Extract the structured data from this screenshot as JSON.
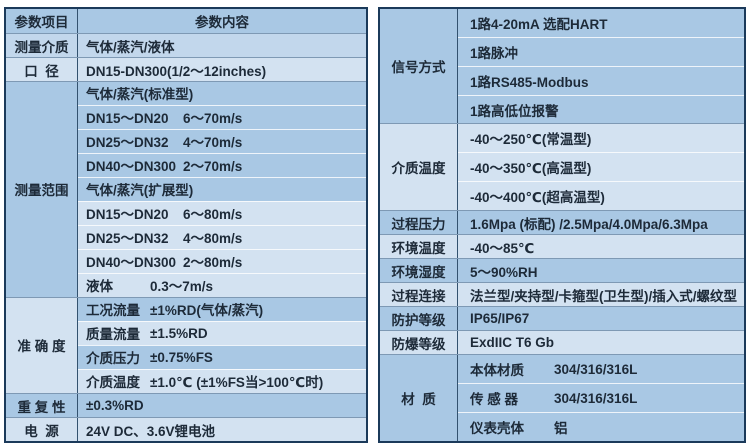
{
  "colors": {
    "band_medium": "#a9c8e4",
    "band_light": "#d3e2f1",
    "band_mid": "#c2d7ec",
    "border_dark": "#1b3a5a",
    "divider_vertical": "#33526f",
    "section_separator": "#7e99b4",
    "row_separator": "rgba(255,255,255,0.8)",
    "text": "#1d2a38",
    "page_background": "#ffffff"
  },
  "left_table": {
    "header": {
      "col1": "参数项目",
      "col2": "参数内容",
      "shade": "m"
    },
    "sections": [
      {
        "label": "测量介质",
        "shade": "ml",
        "rows": [
          {
            "value": "气体/蒸汽/液体",
            "shade": "ml"
          }
        ]
      },
      {
        "label": "口  径",
        "shade": "l",
        "rows": [
          {
            "value": "DN15-DN300(1/2～12inches)",
            "shade": "l"
          }
        ]
      },
      {
        "label": "测量范围",
        "shade": "m",
        "rows": [
          {
            "value": "气体/蒸汽(标准型)",
            "shade": "m"
          },
          {
            "name": "DN15～DN20",
            "value": "6～70m/s",
            "shade": "m"
          },
          {
            "name": "DN25～DN32",
            "value": "4～70m/s",
            "shade": "m"
          },
          {
            "name": "DN40～DN300",
            "value": "2～70m/s",
            "shade": "m"
          },
          {
            "value": "气体/蒸汽(扩展型)",
            "shade": "m"
          },
          {
            "name": "DN15～DN20",
            "value": "6～80m/s",
            "shade": "l"
          },
          {
            "name": "DN25～DN32",
            "value": "4～80m/s",
            "shade": "l"
          },
          {
            "name": "DN40～DN300",
            "value": "2～80m/s",
            "shade": "l"
          },
          {
            "name": "液体",
            "value": "0.3～7m/s",
            "shade": "l"
          }
        ]
      },
      {
        "label": "准 确 度",
        "shade": "l",
        "rows": [
          {
            "name": "工况流量",
            "value": "±1%RD(气体/蒸汽)",
            "shade": "m"
          },
          {
            "name": "质量流量",
            "value": "±1.5%RD",
            "shade": "l"
          },
          {
            "name": "介质压力",
            "value": "±0.75%FS",
            "shade": "m"
          },
          {
            "name": "介质温度",
            "value": "±1.0℃ (±1%FS当>100℃时)",
            "shade": "l"
          }
        ]
      },
      {
        "label": "重 复 性",
        "shade": "m",
        "rows": [
          {
            "value": "±0.3%RD",
            "shade": "m"
          }
        ]
      },
      {
        "label": "电  源",
        "shade": "l",
        "rows": [
          {
            "value": "24V DC、3.6V锂电池",
            "shade": "l"
          }
        ]
      }
    ]
  },
  "right_table": {
    "sections": [
      {
        "label": "信号方式",
        "shade": "m",
        "rows": [
          {
            "value": "1路4-20mA 选配HART",
            "shade": "m"
          },
          {
            "value": "1路脉冲",
            "shade": "m"
          },
          {
            "value": "1路RS485-Modbus",
            "shade": "m"
          },
          {
            "value": "1路高低位报警",
            "shade": "m"
          }
        ]
      },
      {
        "label": "介质温度",
        "shade": "l",
        "rows": [
          {
            "value": "-40～250℃(常温型)",
            "shade": "l"
          },
          {
            "value": "-40～350℃(高温型)",
            "shade": "l"
          },
          {
            "value": "-40～400℃(超高温型)",
            "shade": "l"
          }
        ]
      },
      {
        "label": "过程压力",
        "shade": "m",
        "rows": [
          {
            "value": "1.6Mpa (标配) /2.5Mpa/4.0Mpa/6.3Mpa",
            "shade": "m"
          }
        ]
      },
      {
        "label": "环境温度",
        "shade": "l",
        "rows": [
          {
            "value": "-40～85℃",
            "shade": "l"
          }
        ]
      },
      {
        "label": "环境湿度",
        "shade": "m",
        "rows": [
          {
            "value": "5～90%RH",
            "shade": "m"
          }
        ]
      },
      {
        "label": "过程连接",
        "shade": "l",
        "rows": [
          {
            "value": "法兰型/夹持型/卡箍型(卫生型)/插入式/螺纹型",
            "shade": "l"
          }
        ]
      },
      {
        "label": "防护等级",
        "shade": "m",
        "rows": [
          {
            "value": "IP65/IP67",
            "shade": "m"
          }
        ]
      },
      {
        "label": "防爆等级",
        "shade": "l",
        "rows": [
          {
            "value": "ExdIIC T6 Gb",
            "shade": "l"
          }
        ]
      },
      {
        "label": "材  质",
        "shade": "m",
        "rows": [
          {
            "name": "本体材质",
            "value": "304/316/316L",
            "shade": "m"
          },
          {
            "name": "传 感 器",
            "value": "304/316/316L",
            "shade": "m"
          },
          {
            "name": "仪表壳体",
            "value": "铝",
            "shade": "m"
          }
        ]
      }
    ]
  }
}
